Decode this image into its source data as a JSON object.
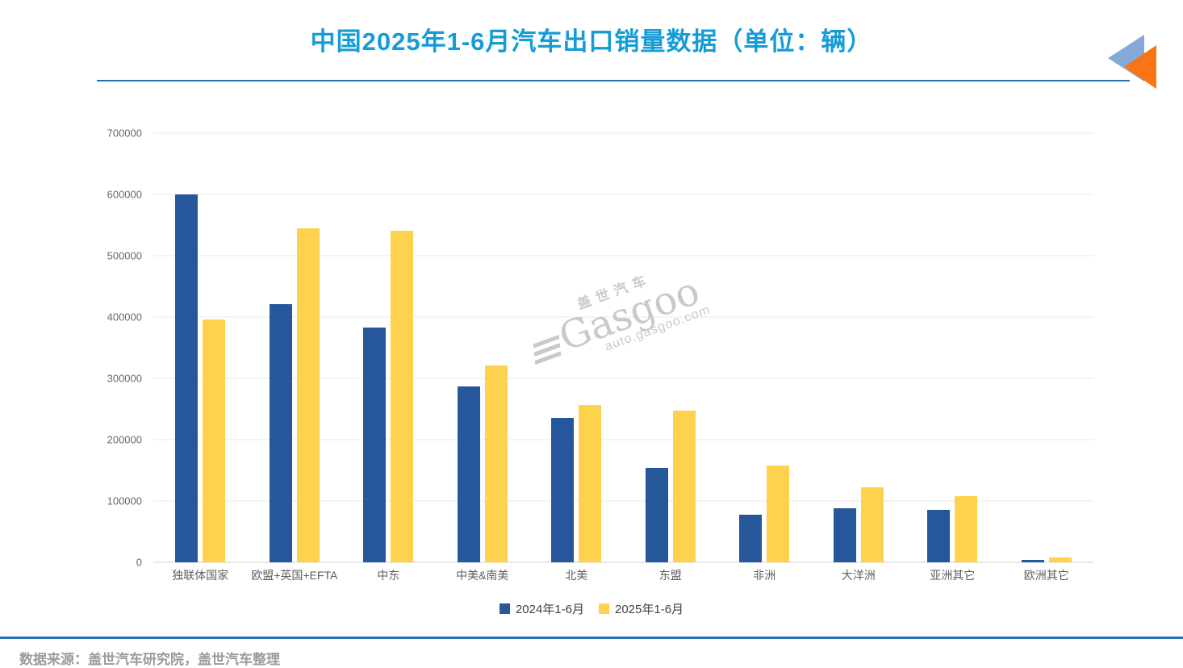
{
  "page": {
    "title": "中国2025年1-6月汽车出口销量数据（单位：辆）",
    "source_note": "数据来源：盖世汽车研究院，盖世汽车整理",
    "watermark": {
      "cn_name": "盖世汽车",
      "brand": "Gasgoo",
      "site": "auto.gasgoo.com"
    }
  },
  "colors": {
    "title_blue": "#149CD8",
    "rule_blue": "#2472B4",
    "bar_blue": "#27579B",
    "bar_yellow": "#FFD24D",
    "grid": "#E9E9E9",
    "grid_zero": "#D2D2D2",
    "axis_text": "#696969",
    "label_text": "#5F5F5F",
    "legend_text": "#3F3F3F",
    "source_text": "#9B9B9B",
    "watermark": "#C9C9C9",
    "logo_blue": "#85A9D9",
    "logo_orange": "#F87414"
  },
  "chart_data": {
    "type": "bar",
    "title": "中国2025年1-6月汽车出口销量数据（单位：辆）",
    "xlabel": "",
    "ylabel": "",
    "categories": [
      "独联体国家",
      "欧盟+英国+EFTA",
      "中东",
      "中美&南美",
      "北美",
      "东盟",
      "非洲",
      "大洋洲",
      "亚洲其它",
      "欧洲其它"
    ],
    "series": [
      {
        "name": "2024年1-6月",
        "color": "#27579B",
        "values": [
          600000,
          421000,
          383000,
          287000,
          235000,
          154000,
          78000,
          88000,
          85000,
          4000
        ]
      },
      {
        "name": "2025年1-6月",
        "color": "#FFD24D",
        "values": [
          396000,
          545000,
          541000,
          321000,
          256000,
          247000,
          158000,
          123000,
          108000,
          8000
        ]
      }
    ],
    "ylim": [
      0,
      700000
    ],
    "yticks": [
      0,
      100000,
      200000,
      300000,
      400000,
      500000,
      600000,
      700000
    ],
    "grid": true,
    "legend_position": "bottom"
  }
}
